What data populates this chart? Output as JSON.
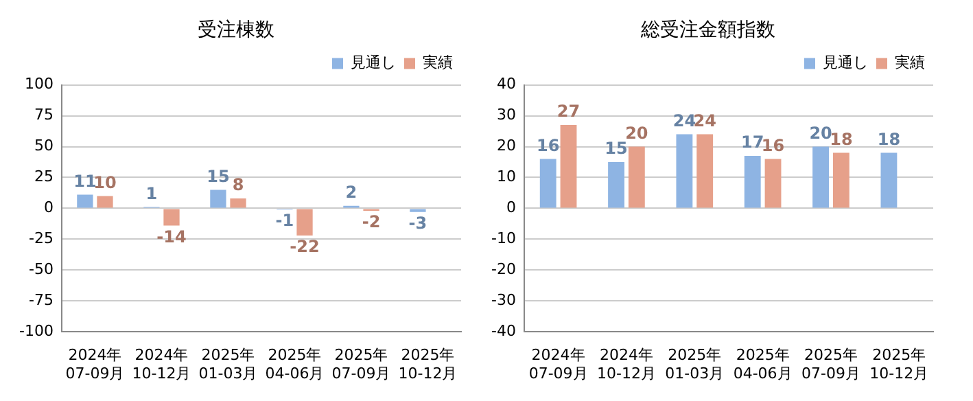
{
  "chart_data": [
    {
      "type": "bar",
      "title": "受注棟数",
      "categories": [
        "2024年\n07-09月",
        "2024年\n10-12月",
        "2025年\n01-03月",
        "2025年\n04-06月",
        "2025年\n07-09月",
        "2025年\n10-12月"
      ],
      "series": [
        {
          "name": "見通し",
          "color": "#8eb4e3",
          "values": [
            11,
            1,
            15,
            -1,
            2,
            -3
          ]
        },
        {
          "name": "実績",
          "color": "#e6a08a",
          "values": [
            10,
            -14,
            8,
            -22,
            -2,
            null
          ]
        }
      ],
      "ylim": [
        -100,
        100
      ],
      "yticks": [
        -100,
        -75,
        -50,
        -25,
        0,
        25,
        50,
        75,
        100
      ],
      "grid": "y",
      "legend": "top right",
      "data_labels": true
    },
    {
      "type": "bar",
      "title": "総受注金額指数",
      "categories": [
        "2024年\n07-09月",
        "2024年\n10-12月",
        "2025年\n01-03月",
        "2025年\n04-06月",
        "2025年\n07-09月",
        "2025年\n10-12月"
      ],
      "series": [
        {
          "name": "見通し",
          "color": "#8eb4e3",
          "values": [
            16,
            15,
            24,
            17,
            20,
            18
          ]
        },
        {
          "name": "実績",
          "color": "#e6a08a",
          "values": [
            27,
            20,
            24,
            16,
            18,
            null
          ]
        }
      ],
      "ylim": [
        -40,
        40
      ],
      "yticks": [
        -40,
        -30,
        -20,
        -10,
        0,
        10,
        20,
        30,
        40
      ],
      "grid": "y",
      "legend": "top right",
      "data_labels": true
    }
  ]
}
